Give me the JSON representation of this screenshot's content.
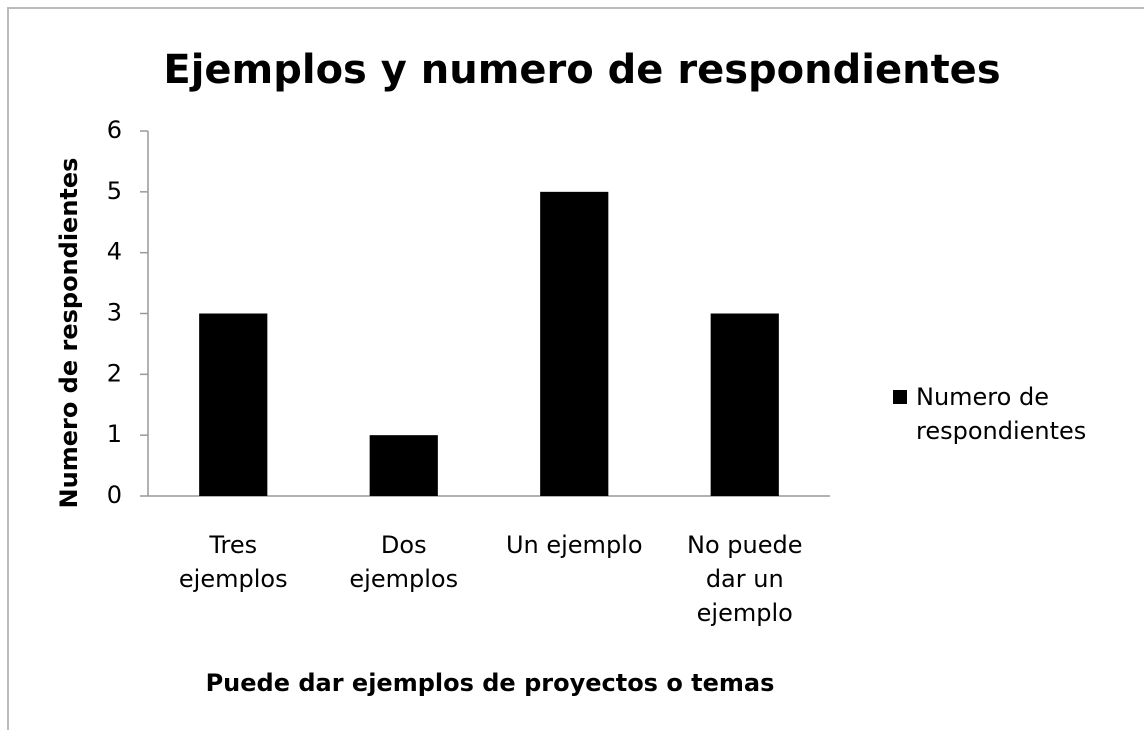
{
  "chart_data": {
    "type": "bar",
    "title": "Ejemplos y numero de respondientes",
    "x_label": "Puede dar ejemplos de proyectos o temas",
    "y_label": "Numero de respondientes",
    "categories": [
      "Tres ejemplos",
      "Dos ejemplos",
      "Un ejemplo",
      "No puede dar un ejemplo"
    ],
    "series": [
      {
        "name": "Numero de respondientes",
        "color": "#000000",
        "values": [
          3,
          1,
          5,
          3
        ]
      }
    ],
    "ylim": [
      0,
      6
    ],
    "yticks": [
      0,
      1,
      2,
      3,
      4,
      5,
      6
    ],
    "grid": false,
    "legend": "right"
  }
}
